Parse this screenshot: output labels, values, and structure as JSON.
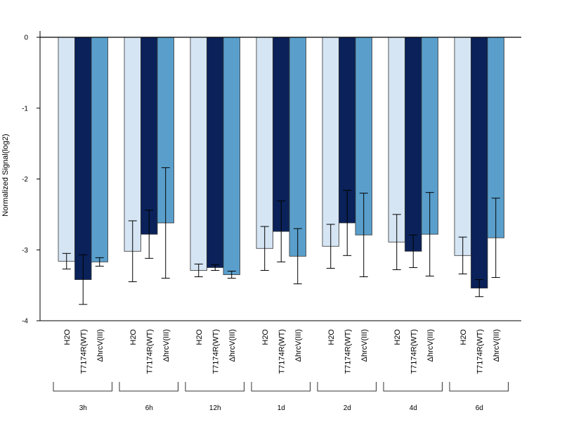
{
  "chart_data": {
    "type": "bar",
    "title": "",
    "xlabel": "",
    "ylabel": "Normalized Signal(log2)",
    "ylim": [
      -4,
      0
    ],
    "yticks": [
      0,
      -1,
      -2,
      -3,
      -4
    ],
    "grid": false,
    "legend": "none",
    "groups": [
      "3h",
      "6h",
      "12h",
      "1d",
      "2d",
      "4d",
      "6d"
    ],
    "bar_labels": [
      "H2O",
      "T7174R(WT)",
      "ΔhrcV(III)"
    ],
    "series": [
      {
        "name": "H2O",
        "color": "#d6e5f4",
        "values": [
          -3.16,
          -3.02,
          -3.29,
          -2.98,
          -2.95,
          -2.89,
          -3.08
        ],
        "error": [
          0.11,
          0.43,
          0.09,
          0.31,
          0.31,
          0.39,
          0.26
        ]
      },
      {
        "name": "T7174R(WT)",
        "color": "#0a2259",
        "values": [
          -3.42,
          -2.78,
          -3.25,
          -2.74,
          -2.62,
          -3.02,
          -3.54
        ],
        "error": [
          0.35,
          0.34,
          0.04,
          0.43,
          0.46,
          0.23,
          0.12
        ]
      },
      {
        "name": "ΔhrcV(III)",
        "color": "#5a9fcc",
        "values": [
          -3.17,
          -2.62,
          -3.35,
          -3.09,
          -2.79,
          -2.78,
          -2.83
        ],
        "error": [
          0.06,
          0.78,
          0.05,
          0.39,
          0.59,
          0.59,
          0.56
        ]
      }
    ]
  }
}
